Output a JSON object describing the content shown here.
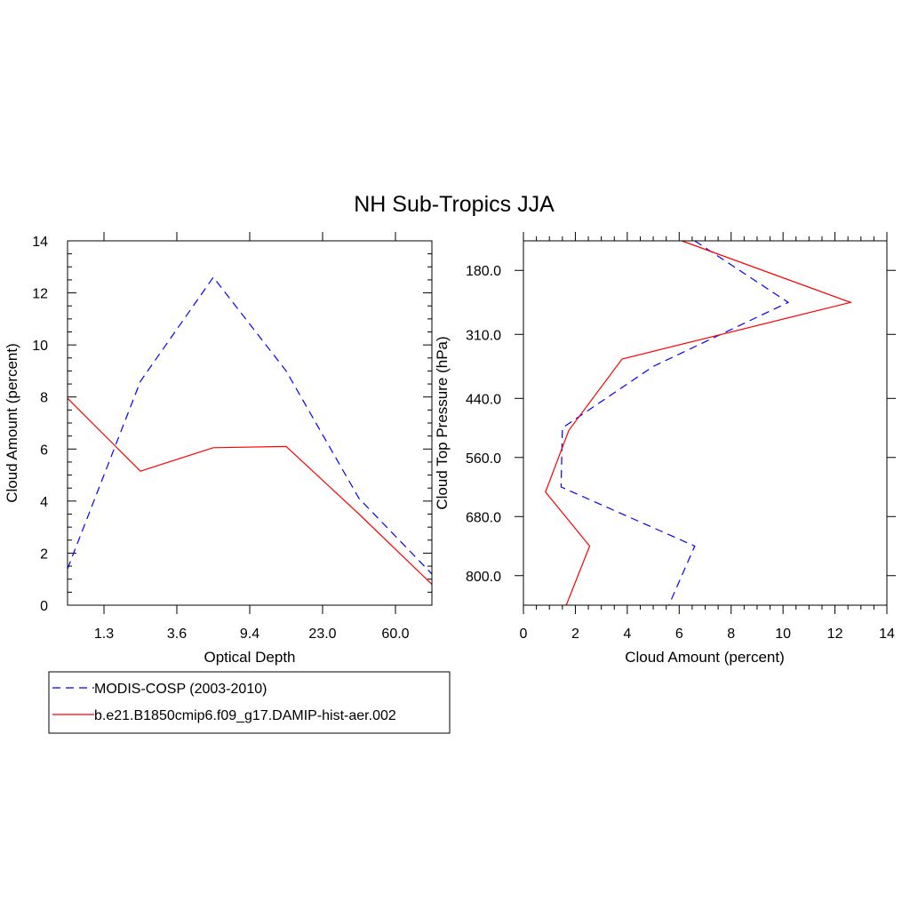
{
  "title": "NH Sub-Tropics JJA",
  "legend": {
    "entries": [
      {
        "label": "MODIS-COSP (2003-2010)",
        "color": "#0000ff",
        "dash": "dashed"
      },
      {
        "label": "b.e21.B1850cmip6.f09_g17.DAMIP-hist-aer.002",
        "color": "#ff0000",
        "dash": "solid"
      }
    ]
  },
  "chart_data": [
    {
      "type": "line",
      "xlabel": "Optical Depth",
      "ylabel": "Cloud Amount (percent)",
      "x_tick_labels": [
        "1.3",
        "3.6",
        "9.4",
        "23.0",
        "60.0"
      ],
      "y_tick_labels": [
        "0",
        "2",
        "4",
        "6",
        "8",
        "10",
        "12",
        "14"
      ],
      "ylim": [
        0,
        14
      ],
      "x": [
        0.3,
        1.3,
        2.3,
        3.6,
        6.0,
        9.4,
        14.0,
        23.0,
        40.0,
        60.0,
        100.0
      ],
      "series": [
        {
          "name": "MODIS-COSP (2003-2010)",
          "color": "#0000ff",
          "values": [
            1.4,
            null,
            8.6,
            null,
            12.6,
            null,
            9.0,
            null,
            4.1,
            null,
            1.2
          ]
        },
        {
          "name": "b.e21.B1850cmip6.f09_g17.DAMIP-hist-aer.002",
          "color": "#ff0000",
          "values": [
            7.95,
            null,
            5.15,
            null,
            6.05,
            null,
            6.1,
            null,
            3.5,
            null,
            0.8
          ]
        }
      ]
    },
    {
      "type": "line",
      "xlabel": "Cloud Amount (percent)",
      "ylabel": "Cloud Top Pressure (hPa)",
      "x_tick_labels": [
        "0",
        "2",
        "4",
        "6",
        "8",
        "10",
        "12",
        "14"
      ],
      "xlim": [
        0,
        14
      ],
      "y_tick_labels": [
        "180.0",
        "310.0",
        "440.0",
        "560.0",
        "680.0",
        "800.0"
      ],
      "pressure_levels": [
        180,
        310,
        440,
        560,
        680,
        800
      ],
      "y_orientation": "pressure increasing downward",
      "series": [
        {
          "name": "MODIS-COSP (2003-2010)",
          "color": "#0000ff",
          "pressure": [
            120,
            245,
            375,
            500,
            620,
            740,
            860
          ],
          "values": [
            6.6,
            10.2,
            5.0,
            1.5,
            1.45,
            6.6,
            5.6
          ]
        },
        {
          "name": "b.e21.B1850cmip6.f09_g17.DAMIP-hist-aer.002",
          "color": "#ff0000",
          "pressure": [
            120,
            245,
            360,
            505,
            630,
            740,
            860
          ],
          "values": [
            6.1,
            12.6,
            3.8,
            1.75,
            0.85,
            2.55,
            1.65
          ]
        }
      ]
    }
  ]
}
